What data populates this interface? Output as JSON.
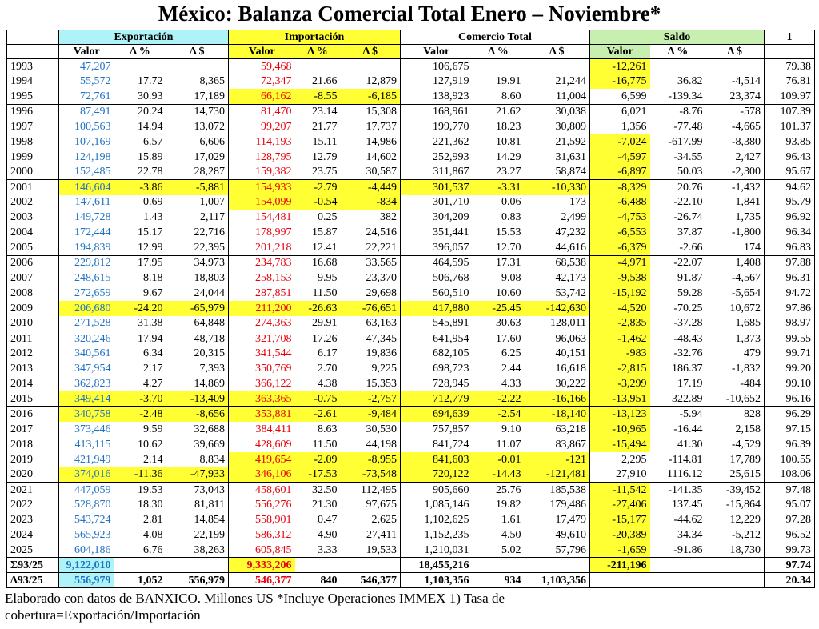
{
  "header": {
    "title": "México: Balanza Comercial Total Enero – Noviembre*"
  },
  "table": {
    "groups": [
      "Exportación",
      "Importación",
      "Comercio Total",
      "Saldo"
    ],
    "cover_header": "1",
    "subheaders": [
      [
        "Valor",
        "Δ %",
        "Δ $"
      ],
      [
        "Valor",
        "Δ %",
        "Δ $"
      ],
      [
        "Valor",
        "Δ %",
        "Δ $"
      ],
      [
        "Valor",
        "Δ %",
        "Δ $"
      ]
    ],
    "rows": [
      [
        "1993",
        "47,207",
        null,
        null,
        "59,468",
        null,
        null,
        "106,675",
        null,
        null,
        "-12,261",
        null,
        null,
        "79.38"
      ],
      [
        "1994",
        "55,572",
        "17.72",
        "8,365",
        "72,347",
        "21.66",
        "12,879",
        "127,919",
        "19.91",
        "21,244",
        "-16,775",
        "36.82",
        "-4,514",
        "76.81"
      ],
      [
        "1995",
        "72,761",
        "30.93",
        "17,189",
        "66,162",
        "-8.55",
        "-6,185",
        "138,923",
        "8.60",
        "11,004",
        "6,599",
        "-139.34",
        "23,374",
        "109.97"
      ],
      [
        "1996",
        "87,491",
        "20.24",
        "14,730",
        "81,470",
        "23.14",
        "15,308",
        "168,961",
        "21.62",
        "30,038",
        "6,021",
        "-8.76",
        "-578",
        "107.39"
      ],
      [
        "1997",
        "100,563",
        "14.94",
        "13,072",
        "99,207",
        "21.77",
        "17,737",
        "199,770",
        "18.23",
        "30,809",
        "1,356",
        "-77.48",
        "-4,665",
        "101.37"
      ],
      [
        "1998",
        "107,169",
        "6.57",
        "6,606",
        "114,193",
        "15.11",
        "14,986",
        "221,362",
        "10.81",
        "21,592",
        "-7,024",
        "-617.99",
        "-8,380",
        "93.85"
      ],
      [
        "1999",
        "124,198",
        "15.89",
        "17,029",
        "128,795",
        "12.79",
        "14,602",
        "252,993",
        "14.29",
        "31,631",
        "-4,597",
        "-34.55",
        "2,427",
        "96.43"
      ],
      [
        "2000",
        "152,485",
        "22.78",
        "28,287",
        "159,382",
        "23.75",
        "30,587",
        "311,867",
        "23.27",
        "58,874",
        "-6,897",
        "50.03",
        "-2,300",
        "95.67"
      ],
      [
        "2001",
        "146,604",
        "-3.86",
        "-5,881",
        "154,933",
        "-2.79",
        "-4,449",
        "301,537",
        "-3.31",
        "-10,330",
        "-8,329",
        "20.76",
        "-1,432",
        "94.62"
      ],
      [
        "2002",
        "147,611",
        "0.69",
        "1,007",
        "154,099",
        "-0.54",
        "-834",
        "301,710",
        "0.06",
        "173",
        "-6,488",
        "-22.10",
        "1,841",
        "95.79"
      ],
      [
        "2003",
        "149,728",
        "1.43",
        "2,117",
        "154,481",
        "0.25",
        "382",
        "304,209",
        "0.83",
        "2,499",
        "-4,753",
        "-26.74",
        "1,735",
        "96.92"
      ],
      [
        "2004",
        "172,444",
        "15.17",
        "22,716",
        "178,997",
        "15.87",
        "24,516",
        "351,441",
        "15.53",
        "47,232",
        "-6,553",
        "37.87",
        "-1,800",
        "96.34"
      ],
      [
        "2005",
        "194,839",
        "12.99",
        "22,395",
        "201,218",
        "12.41",
        "22,221",
        "396,057",
        "12.70",
        "44,616",
        "-6,379",
        "-2.66",
        "174",
        "96.83"
      ],
      [
        "2006",
        "229,812",
        "17.95",
        "34,973",
        "234,783",
        "16.68",
        "33,565",
        "464,595",
        "17.31",
        "68,538",
        "-4,971",
        "-22.07",
        "1,408",
        "97.88"
      ],
      [
        "2007",
        "248,615",
        "8.18",
        "18,803",
        "258,153",
        "9.95",
        "23,370",
        "506,768",
        "9.08",
        "42,173",
        "-9,538",
        "91.87",
        "-4,567",
        "96.31"
      ],
      [
        "2008",
        "272,659",
        "9.67",
        "24,044",
        "287,851",
        "11.50",
        "29,698",
        "560,510",
        "10.60",
        "53,742",
        "-15,192",
        "59.28",
        "-5,654",
        "94.72"
      ],
      [
        "2009",
        "206,680",
        "-24.20",
        "-65,979",
        "211,200",
        "-26.63",
        "-76,651",
        "417,880",
        "-25.45",
        "-142,630",
        "-4,520",
        "-70.25",
        "10,672",
        "97.86"
      ],
      [
        "2010",
        "271,528",
        "31.38",
        "64,848",
        "274,363",
        "29.91",
        "63,163",
        "545,891",
        "30.63",
        "128,011",
        "-2,835",
        "-37.28",
        "1,685",
        "98.97"
      ],
      [
        "2011",
        "320,246",
        "17.94",
        "48,718",
        "321,708",
        "17.26",
        "47,345",
        "641,954",
        "17.60",
        "96,063",
        "-1,462",
        "-48.43",
        "1,373",
        "99.55"
      ],
      [
        "2012",
        "340,561",
        "6.34",
        "20,315",
        "341,544",
        "6.17",
        "19,836",
        "682,105",
        "6.25",
        "40,151",
        "-983",
        "-32.76",
        "479",
        "99.71"
      ],
      [
        "2013",
        "347,954",
        "2.17",
        "7,393",
        "350,769",
        "2.70",
        "9,225",
        "698,723",
        "2.44",
        "16,618",
        "-2,815",
        "186.37",
        "-1,832",
        "99.20"
      ],
      [
        "2014",
        "362,823",
        "4.27",
        "14,869",
        "366,122",
        "4.38",
        "15,353",
        "728,945",
        "4.33",
        "30,222",
        "-3,299",
        "17.19",
        "-484",
        "99.10"
      ],
      [
        "2015",
        "349,414",
        "-3.70",
        "-13,409",
        "363,365",
        "-0.75",
        "-2,757",
        "712,779",
        "-2.22",
        "-16,166",
        "-13,951",
        "322.89",
        "-10,652",
        "96.16"
      ],
      [
        "2016",
        "340,758",
        "-2.48",
        "-8,656",
        "353,881",
        "-2.61",
        "-9,484",
        "694,639",
        "-2.54",
        "-18,140",
        "-13,123",
        "-5.94",
        "828",
        "96.29"
      ],
      [
        "2017",
        "373,446",
        "9.59",
        "32,688",
        "384,411",
        "8.63",
        "30,530",
        "757,857",
        "9.10",
        "63,218",
        "-10,965",
        "-16.44",
        "2,158",
        "97.15"
      ],
      [
        "2018",
        "413,115",
        "10.62",
        "39,669",
        "428,609",
        "11.50",
        "44,198",
        "841,724",
        "11.07",
        "83,867",
        "-15,494",
        "41.30",
        "-4,529",
        "96.39"
      ],
      [
        "2019",
        "421,949",
        "2.14",
        "8,834",
        "419,654",
        "-2.09",
        "-8,955",
        "841,603",
        "-0.01",
        "-121",
        "2,295",
        "-114.81",
        "17,789",
        "100.55"
      ],
      [
        "2020",
        "374,016",
        "-11.36",
        "-47,933",
        "346,106",
        "-17.53",
        "-73,548",
        "720,122",
        "-14.43",
        "-121,481",
        "27,910",
        "1116.12",
        "25,615",
        "108.06"
      ],
      [
        "2021",
        "447,059",
        "19.53",
        "73,043",
        "458,601",
        "32.50",
        "112,495",
        "905,660",
        "25.76",
        "185,538",
        "-11,542",
        "-141.35",
        "-39,452",
        "97.48"
      ],
      [
        "2022",
        "528,870",
        "18.30",
        "81,811",
        "556,276",
        "21.30",
        "97,675",
        "1,085,146",
        "19.82",
        "179,486",
        "-27,406",
        "137.45",
        "-15,864",
        "95.07"
      ],
      [
        "2023",
        "543,724",
        "2.81",
        "14,854",
        "558,901",
        "0.47",
        "2,625",
        "1,102,625",
        "1.61",
        "17,479",
        "-15,177",
        "-44.62",
        "12,229",
        "97.28"
      ],
      [
        "2024",
        "565,923",
        "4.08",
        "22,199",
        "586,312",
        "4.90",
        "27,411",
        "1,152,235",
        "4.50",
        "49,610",
        "-20,389",
        "34.34",
        "-5,212",
        "96.52"
      ],
      [
        "2025",
        "604,186",
        "6.76",
        "38,263",
        "605,845",
        "3.33",
        "19,533",
        "1,210,031",
        "5.02",
        "57,796",
        "-1,659",
        "-91.86",
        "18,730",
        "99.73"
      ],
      [
        "Σ93/25",
        "9,122,010",
        null,
        null,
        "9,333,206",
        null,
        null,
        "18,455,216",
        null,
        null,
        "-211,196",
        null,
        null,
        "97.74"
      ],
      [
        "Δ93/25",
        "556,979",
        "1,052",
        "556,979",
        "546,377",
        "840",
        "546,377",
        "1,103,356",
        "934",
        "1,103,356",
        null,
        null,
        null,
        "20.34"
      ]
    ]
  },
  "footnote": "Elaborado con datos de BANXICO. Millones US *Incluye Operaciones IMMEX 1) Tasa de cobertura=Exportación/Importación"
}
